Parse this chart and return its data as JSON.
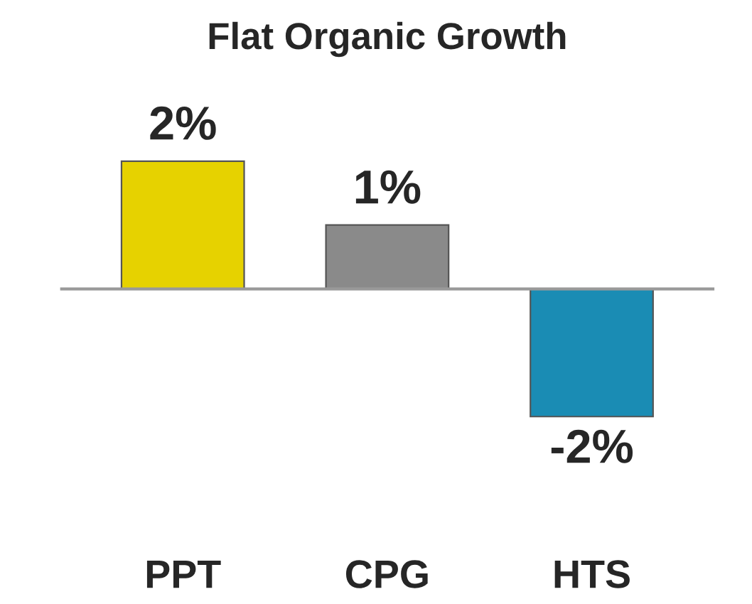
{
  "chart_data": {
    "type": "bar",
    "title": "Flat Organic Growth",
    "categories": [
      "PPT",
      "CPG",
      "HTS"
    ],
    "values": [
      2,
      1,
      -2
    ],
    "colors": [
      "#e6d200",
      "#8a8a8a",
      "#1a8cb4"
    ],
    "value_labels": [
      "2%",
      "1%",
      "-2%"
    ],
    "tick_labels": "x",
    "grid": false,
    "legend": false
  }
}
